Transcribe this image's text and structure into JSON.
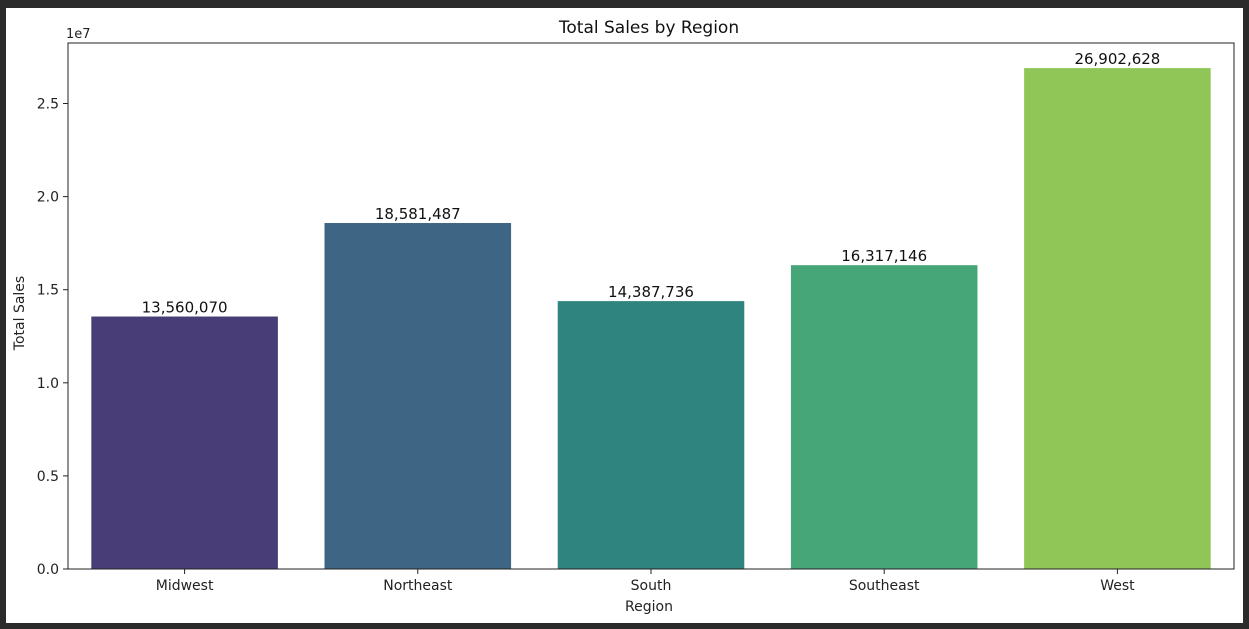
{
  "chart_data": {
    "type": "bar",
    "title": "Total Sales by Region",
    "xlabel": "Region",
    "ylabel": "Total Sales",
    "y_scale_label": "1e7",
    "categories": [
      "Midwest",
      "Northeast",
      "South",
      "Southeast",
      "West"
    ],
    "values": [
      13560070,
      18581487,
      14387736,
      16317146,
      26902628
    ],
    "value_labels": [
      "13,560,070",
      "18,581,487",
      "14,387,736",
      "16,317,146",
      "26,902,628"
    ],
    "colors": [
      "#483d77",
      "#3e6583",
      "#2f847f",
      "#46a678",
      "#90c657"
    ],
    "ylim": [
      0,
      28250000
    ],
    "yticks": [
      0,
      5000000,
      10000000,
      15000000,
      20000000,
      25000000
    ],
    "ytick_labels": [
      "0.0",
      "0.5",
      "1.0",
      "1.5",
      "2.0",
      "2.5"
    ],
    "grid": false,
    "legend": "none"
  }
}
